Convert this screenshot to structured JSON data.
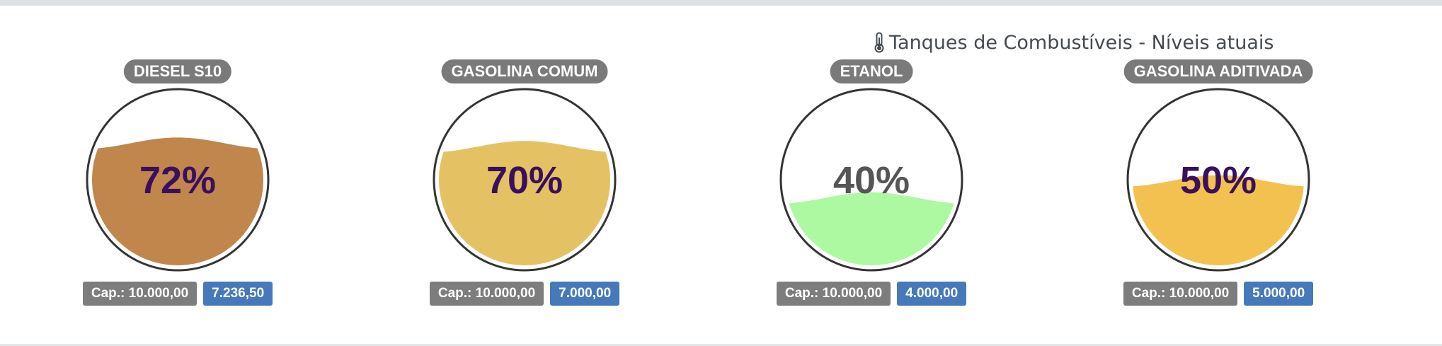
{
  "header": {
    "title": "Tanques de Combustíveis - Níveis atuais",
    "icon": "thermometer-icon"
  },
  "tanks": [
    {
      "name": "DIESEL S10",
      "percent_text": "72%",
      "level": 0.72,
      "capacity": "Cap.: 10.000,00",
      "volume": "7.236,50",
      "fill_color": "#c0864c",
      "text_color": "#3a0f5e"
    },
    {
      "name": "GASOLINA COMUM",
      "percent_text": "70%",
      "level": 0.7,
      "capacity": "Cap.: 10.000,00",
      "volume": "7.000,00",
      "fill_color": "#e4c264",
      "text_color": "#3a0f5e"
    },
    {
      "name": "ETANOL",
      "percent_text": "40%",
      "level": 0.4,
      "capacity": "Cap.: 10.000,00",
      "volume": "4.000,00",
      "fill_color": "#adf9a1",
      "text_color": "#555555"
    },
    {
      "name": "GASOLINA ADITIVADA",
      "percent_text": "50%",
      "level": 0.5,
      "capacity": "Cap.: 10.000,00",
      "volume": "5.000,00",
      "fill_color": "#f3c14f",
      "text_color": "#3a0f5e"
    }
  ]
}
